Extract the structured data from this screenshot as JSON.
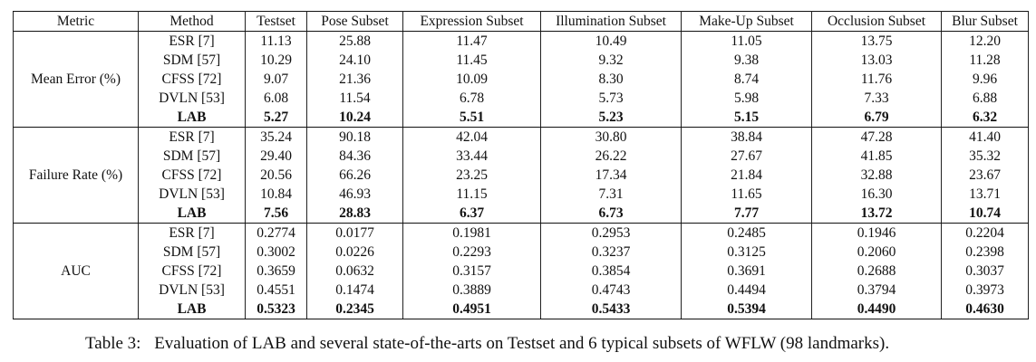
{
  "table": {
    "headers": [
      "Metric",
      "Method",
      "Testset",
      "Pose Subset",
      "Expression Subset",
      "Illumination Subset",
      "Make-Up Subset",
      "Occlusion Subset",
      "Blur Subset"
    ],
    "groups": [
      {
        "metric": "Mean Error (%)",
        "rows": [
          {
            "method": "ESR [7]",
            "values": [
              "11.13",
              "25.88",
              "11.47",
              "10.49",
              "11.05",
              "13.75",
              "12.20"
            ],
            "bold": false
          },
          {
            "method": "SDM [57]",
            "values": [
              "10.29",
              "24.10",
              "11.45",
              "9.32",
              "9.38",
              "13.03",
              "11.28"
            ],
            "bold": false
          },
          {
            "method": "CFSS [72]",
            "values": [
              "9.07",
              "21.36",
              "10.09",
              "8.30",
              "8.74",
              "11.76",
              "9.96"
            ],
            "bold": false
          },
          {
            "method": "DVLN [53]",
            "values": [
              "6.08",
              "11.54",
              "6.78",
              "5.73",
              "5.98",
              "7.33",
              "6.88"
            ],
            "bold": false
          },
          {
            "method": "LAB",
            "values": [
              "5.27",
              "10.24",
              "5.51",
              "5.23",
              "5.15",
              "6.79",
              "6.32"
            ],
            "bold": true
          }
        ]
      },
      {
        "metric": "Failure Rate (%)",
        "rows": [
          {
            "method": "ESR [7]",
            "values": [
              "35.24",
              "90.18",
              "42.04",
              "30.80",
              "38.84",
              "47.28",
              "41.40"
            ],
            "bold": false
          },
          {
            "method": "SDM [57]",
            "values": [
              "29.40",
              "84.36",
              "33.44",
              "26.22",
              "27.67",
              "41.85",
              "35.32"
            ],
            "bold": false
          },
          {
            "method": "CFSS [72]",
            "values": [
              "20.56",
              "66.26",
              "23.25",
              "17.34",
              "21.84",
              "32.88",
              "23.67"
            ],
            "bold": false
          },
          {
            "method": "DVLN [53]",
            "values": [
              "10.84",
              "46.93",
              "11.15",
              "7.31",
              "11.65",
              "16.30",
              "13.71"
            ],
            "bold": false
          },
          {
            "method": "LAB",
            "values": [
              "7.56",
              "28.83",
              "6.37",
              "6.73",
              "7.77",
              "13.72",
              "10.74"
            ],
            "bold": true
          }
        ]
      },
      {
        "metric": "AUC",
        "rows": [
          {
            "method": "ESR [7]",
            "values": [
              "0.2774",
              "0.0177",
              "0.1981",
              "0.2953",
              "0.2485",
              "0.1946",
              "0.2204"
            ],
            "bold": false
          },
          {
            "method": "SDM [57]",
            "values": [
              "0.3002",
              "0.0226",
              "0.2293",
              "0.3237",
              "0.3125",
              "0.2060",
              "0.2398"
            ],
            "bold": false
          },
          {
            "method": "CFSS [72]",
            "values": [
              "0.3659",
              "0.0632",
              "0.3157",
              "0.3854",
              "0.3691",
              "0.2688",
              "0.3037"
            ],
            "bold": false
          },
          {
            "method": "DVLN [53]",
            "values": [
              "0.4551",
              "0.1474",
              "0.3889",
              "0.4743",
              "0.4494",
              "0.3794",
              "0.3973"
            ],
            "bold": false
          },
          {
            "method": "LAB",
            "values": [
              "0.5323",
              "0.2345",
              "0.4951",
              "0.5433",
              "0.5394",
              "0.4490",
              "0.4630"
            ],
            "bold": true
          }
        ]
      }
    ]
  },
  "caption": {
    "label": "Table 3:",
    "text": "Evaluation of LAB and several state-of-the-arts on Testset and 6 typical subsets of WFLW (98 landmarks)."
  }
}
